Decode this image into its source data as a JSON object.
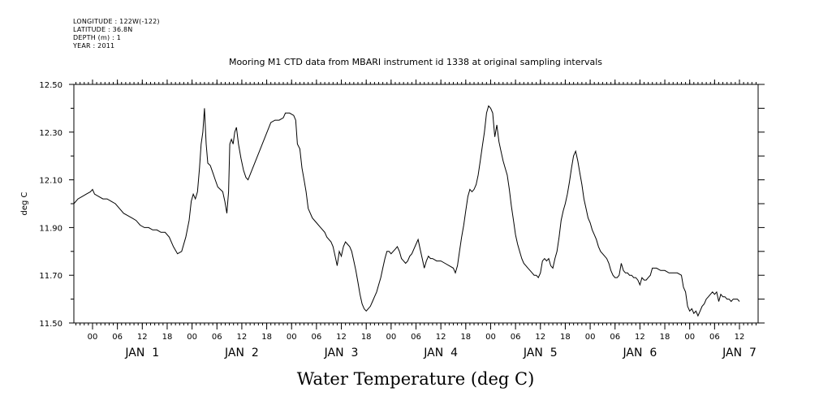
{
  "header": {
    "longitude": "LONGITUDE : 122W(-122)",
    "latitude": "LATITUDE : 36.8N",
    "depth": "DEPTH (m) : 1",
    "year": "YEAR : 2011"
  },
  "chart_data": {
    "type": "line",
    "title": "Mooring M1 CTD data from MBARI instrument id 1338 at original sampling intervals",
    "xlabel": "Water Temperature (deg C)",
    "ylabel": "deg C",
    "ylim": [
      11.5,
      12.5
    ],
    "yticks": [
      "11.50",
      "11.70",
      "11.90",
      "12.10",
      "12.30",
      "12.50"
    ],
    "xlim_hours": [
      -4.5,
      160.5
    ],
    "hour_tick_labels": [
      {
        "h": 0,
        "label": "00"
      },
      {
        "h": 6,
        "label": "06"
      },
      {
        "h": 12,
        "label": "12"
      },
      {
        "h": 18,
        "label": "18"
      },
      {
        "h": 24,
        "label": "00"
      },
      {
        "h": 30,
        "label": "06"
      },
      {
        "h": 36,
        "label": "12"
      },
      {
        "h": 42,
        "label": "18"
      },
      {
        "h": 48,
        "label": "00"
      },
      {
        "h": 54,
        "label": "06"
      },
      {
        "h": 60,
        "label": "12"
      },
      {
        "h": 66,
        "label": "18"
      },
      {
        "h": 72,
        "label": "00"
      },
      {
        "h": 78,
        "label": "06"
      },
      {
        "h": 84,
        "label": "12"
      },
      {
        "h": 90,
        "label": "18"
      },
      {
        "h": 96,
        "label": "00"
      },
      {
        "h": 102,
        "label": "06"
      },
      {
        "h": 108,
        "label": "12"
      },
      {
        "h": 114,
        "label": "18"
      },
      {
        "h": 120,
        "label": "00"
      },
      {
        "h": 126,
        "label": "06"
      },
      {
        "h": 132,
        "label": "12"
      },
      {
        "h": 138,
        "label": "18"
      },
      {
        "h": 144,
        "label": "00"
      },
      {
        "h": 150,
        "label": "06"
      },
      {
        "h": 156,
        "label": "12"
      }
    ],
    "day_labels": [
      {
        "h": 12,
        "label": "JAN  1"
      },
      {
        "h": 36,
        "label": "JAN  2"
      },
      {
        "h": 60,
        "label": "JAN  3"
      },
      {
        "h": 84,
        "label": "JAN  4"
      },
      {
        "h": 108,
        "label": "JAN  5"
      },
      {
        "h": 132,
        "label": "JAN  6"
      },
      {
        "h": 156,
        "label": "JAN  7"
      }
    ],
    "grid": false,
    "series": [
      {
        "color": "#000000",
        "points": [
          [
            -4.5,
            12.0
          ],
          [
            -3.5,
            12.02
          ],
          [
            -2.5,
            12.03
          ],
          [
            -1.5,
            12.04
          ],
          [
            -0.5,
            12.05
          ],
          [
            0.0,
            12.06
          ],
          [
            0.5,
            12.04
          ],
          [
            1.5,
            12.03
          ],
          [
            2.5,
            12.02
          ],
          [
            3.5,
            12.02
          ],
          [
            4.5,
            12.01
          ],
          [
            5.5,
            12.0
          ],
          [
            6.5,
            11.98
          ],
          [
            7.5,
            11.96
          ],
          [
            8.5,
            11.95
          ],
          [
            9.5,
            11.94
          ],
          [
            10.5,
            11.93
          ],
          [
            11.5,
            11.91
          ],
          [
            12.5,
            11.9
          ],
          [
            13.5,
            11.9
          ],
          [
            14.5,
            11.89
          ],
          [
            15.5,
            11.89
          ],
          [
            16.5,
            11.88
          ],
          [
            17.5,
            11.88
          ],
          [
            18.5,
            11.86
          ],
          [
            19.5,
            11.82
          ],
          [
            20.5,
            11.79
          ],
          [
            21.5,
            11.8
          ],
          [
            22.5,
            11.86
          ],
          [
            23.3,
            11.93
          ],
          [
            23.8,
            12.01
          ],
          [
            24.3,
            12.04
          ],
          [
            24.8,
            12.02
          ],
          [
            25.3,
            12.05
          ],
          [
            25.8,
            12.15
          ],
          [
            26.2,
            12.25
          ],
          [
            26.6,
            12.3
          ],
          [
            27.0,
            12.4
          ],
          [
            27.4,
            12.25
          ],
          [
            27.8,
            12.17
          ],
          [
            28.4,
            12.16
          ],
          [
            29.0,
            12.13
          ],
          [
            29.6,
            12.1
          ],
          [
            30.2,
            12.07
          ],
          [
            30.8,
            12.06
          ],
          [
            31.4,
            12.05
          ],
          [
            31.9,
            12.01
          ],
          [
            32.4,
            11.96
          ],
          [
            32.8,
            12.05
          ],
          [
            33.1,
            12.25
          ],
          [
            33.5,
            12.27
          ],
          [
            33.9,
            12.25
          ],
          [
            34.3,
            12.3
          ],
          [
            34.7,
            12.32
          ],
          [
            35.2,
            12.25
          ],
          [
            35.8,
            12.19
          ],
          [
            36.4,
            12.14
          ],
          [
            37.0,
            12.11
          ],
          [
            37.5,
            12.1
          ],
          [
            43.0,
            12.34
          ],
          [
            44.0,
            12.35
          ],
          [
            45.0,
            12.35
          ],
          [
            46.0,
            12.36
          ],
          [
            46.5,
            12.38
          ],
          [
            47.5,
            12.38
          ],
          [
            48.5,
            12.37
          ],
          [
            49.0,
            12.35
          ],
          [
            49.4,
            12.25
          ],
          [
            50.0,
            12.23
          ],
          [
            50.5,
            12.15
          ],
          [
            51.0,
            12.1
          ],
          [
            51.5,
            12.05
          ],
          [
            52.0,
            11.98
          ],
          [
            53.0,
            11.94
          ],
          [
            54.0,
            11.92
          ],
          [
            55.0,
            11.9
          ],
          [
            56.0,
            11.88
          ],
          [
            56.5,
            11.86
          ],
          [
            57.5,
            11.84
          ],
          [
            58.0,
            11.82
          ],
          [
            58.5,
            11.78
          ],
          [
            59.0,
            11.74
          ],
          [
            59.5,
            11.8
          ],
          [
            60.0,
            11.78
          ],
          [
            60.5,
            11.82
          ],
          [
            61.0,
            11.84
          ],
          [
            61.5,
            11.83
          ],
          [
            62.0,
            11.82
          ],
          [
            62.5,
            11.8
          ],
          [
            63.0,
            11.76
          ],
          [
            63.5,
            11.72
          ],
          [
            64.0,
            11.67
          ],
          [
            64.5,
            11.62
          ],
          [
            65.0,
            11.58
          ],
          [
            65.5,
            11.56
          ],
          [
            66.0,
            11.55
          ],
          [
            66.5,
            11.56
          ],
          [
            67.0,
            11.57
          ],
          [
            67.5,
            11.59
          ],
          [
            68.0,
            11.61
          ],
          [
            68.5,
            11.63
          ],
          [
            69.0,
            11.66
          ],
          [
            69.5,
            11.69
          ],
          [
            70.0,
            11.73
          ],
          [
            70.5,
            11.77
          ],
          [
            71.0,
            11.8
          ],
          [
            71.5,
            11.8
          ],
          [
            72.0,
            11.79
          ],
          [
            72.5,
            11.8
          ],
          [
            73.0,
            11.81
          ],
          [
            73.5,
            11.82
          ],
          [
            74.0,
            11.8
          ],
          [
            74.5,
            11.77
          ],
          [
            75.0,
            11.76
          ],
          [
            75.5,
            11.75
          ],
          [
            76.0,
            11.76
          ],
          [
            76.5,
            11.78
          ],
          [
            77.0,
            11.79
          ],
          [
            77.5,
            11.81
          ],
          [
            78.0,
            11.83
          ],
          [
            78.5,
            11.85
          ],
          [
            79.0,
            11.81
          ],
          [
            79.5,
            11.77
          ],
          [
            80.0,
            11.73
          ],
          [
            80.5,
            11.76
          ],
          [
            81.0,
            11.78
          ],
          [
            81.5,
            11.77
          ],
          [
            82.0,
            11.77
          ],
          [
            83.0,
            11.76
          ],
          [
            84.0,
            11.76
          ],
          [
            85.0,
            11.75
          ],
          [
            86.0,
            11.74
          ],
          [
            87.0,
            11.73
          ],
          [
            87.5,
            11.71
          ],
          [
            88.0,
            11.74
          ],
          [
            88.5,
            11.8
          ],
          [
            89.0,
            11.86
          ],
          [
            89.5,
            11.91
          ],
          [
            90.0,
            11.97
          ],
          [
            90.5,
            12.03
          ],
          [
            91.0,
            12.06
          ],
          [
            91.5,
            12.05
          ],
          [
            92.0,
            12.06
          ],
          [
            92.5,
            12.08
          ],
          [
            93.0,
            12.12
          ],
          [
            93.5,
            12.18
          ],
          [
            94.0,
            12.24
          ],
          [
            94.5,
            12.3
          ],
          [
            95.0,
            12.38
          ],
          [
            95.5,
            12.41
          ],
          [
            96.0,
            12.4
          ],
          [
            96.5,
            12.38
          ],
          [
            97.0,
            12.28
          ],
          [
            97.5,
            12.33
          ],
          [
            98.0,
            12.26
          ],
          [
            98.5,
            12.22
          ],
          [
            99.0,
            12.18
          ],
          [
            99.5,
            12.15
          ],
          [
            100.0,
            12.12
          ],
          [
            100.5,
            12.06
          ],
          [
            101.0,
            11.99
          ],
          [
            101.5,
            11.93
          ],
          [
            102.0,
            11.87
          ],
          [
            102.5,
            11.83
          ],
          [
            103.0,
            11.8
          ],
          [
            103.5,
            11.77
          ],
          [
            104.0,
            11.75
          ],
          [
            104.5,
            11.74
          ],
          [
            105.0,
            11.73
          ],
          [
            105.5,
            11.72
          ],
          [
            106.0,
            11.71
          ],
          [
            106.5,
            11.7
          ],
          [
            107.0,
            11.7
          ],
          [
            107.5,
            11.69
          ],
          [
            108.0,
            11.71
          ],
          [
            108.5,
            11.76
          ],
          [
            109.0,
            11.77
          ],
          [
            109.5,
            11.76
          ],
          [
            110.0,
            11.77
          ],
          [
            110.5,
            11.74
          ],
          [
            111.0,
            11.73
          ],
          [
            111.5,
            11.77
          ],
          [
            112.0,
            11.8
          ],
          [
            112.5,
            11.86
          ],
          [
            113.0,
            11.93
          ],
          [
            113.5,
            11.97
          ],
          [
            114.0,
            12.0
          ],
          [
            114.5,
            12.04
          ],
          [
            115.0,
            12.09
          ],
          [
            115.5,
            12.15
          ],
          [
            116.0,
            12.2
          ],
          [
            116.5,
            12.22
          ],
          [
            117.0,
            12.18
          ],
          [
            117.5,
            12.13
          ],
          [
            118.0,
            12.08
          ],
          [
            118.5,
            12.02
          ],
          [
            119.0,
            11.98
          ],
          [
            119.5,
            11.94
          ],
          [
            120.0,
            11.92
          ],
          [
            120.5,
            11.89
          ],
          [
            121.0,
            11.87
          ],
          [
            121.5,
            11.85
          ],
          [
            122.0,
            11.82
          ],
          [
            122.5,
            11.8
          ],
          [
            123.0,
            11.79
          ],
          [
            123.5,
            11.78
          ],
          [
            124.0,
            11.77
          ],
          [
            124.5,
            11.75
          ],
          [
            125.0,
            11.72
          ],
          [
            125.5,
            11.7
          ],
          [
            126.0,
            11.69
          ],
          [
            126.5,
            11.69
          ],
          [
            127.0,
            11.7
          ],
          [
            127.5,
            11.75
          ],
          [
            128.0,
            11.72
          ],
          [
            128.5,
            11.71
          ],
          [
            129.0,
            11.71
          ],
          [
            129.5,
            11.7
          ],
          [
            130.0,
            11.7
          ],
          [
            130.5,
            11.69
          ],
          [
            131.0,
            11.69
          ],
          [
            131.5,
            11.68
          ],
          [
            132.0,
            11.66
          ],
          [
            132.5,
            11.69
          ],
          [
            133.0,
            11.68
          ],
          [
            133.5,
            11.68
          ],
          [
            134.0,
            11.69
          ],
          [
            134.5,
            11.7
          ],
          [
            135.0,
            11.73
          ],
          [
            136.0,
            11.73
          ],
          [
            137.0,
            11.72
          ],
          [
            138.0,
            11.72
          ],
          [
            139.0,
            11.71
          ],
          [
            140.0,
            11.71
          ],
          [
            141.0,
            11.71
          ],
          [
            142.0,
            11.7
          ],
          [
            142.5,
            11.65
          ],
          [
            143.0,
            11.63
          ],
          [
            143.5,
            11.57
          ],
          [
            144.0,
            11.55
          ],
          [
            144.5,
            11.56
          ],
          [
            145.0,
            11.54
          ],
          [
            145.5,
            11.55
          ],
          [
            146.0,
            11.53
          ],
          [
            146.5,
            11.55
          ],
          [
            147.0,
            11.57
          ],
          [
            147.5,
            11.58
          ],
          [
            148.0,
            11.6
          ],
          [
            148.5,
            11.61
          ],
          [
            149.0,
            11.62
          ],
          [
            149.5,
            11.63
          ],
          [
            150.0,
            11.62
          ],
          [
            150.5,
            11.63
          ],
          [
            151.0,
            11.59
          ],
          [
            151.5,
            11.62
          ],
          [
            152.0,
            11.61
          ],
          [
            152.5,
            11.61
          ],
          [
            153.0,
            11.6
          ],
          [
            153.5,
            11.6
          ],
          [
            154.0,
            11.59
          ],
          [
            154.5,
            11.6
          ],
          [
            155.0,
            11.6
          ],
          [
            155.5,
            11.6
          ],
          [
            156.0,
            11.59
          ]
        ]
      }
    ]
  }
}
